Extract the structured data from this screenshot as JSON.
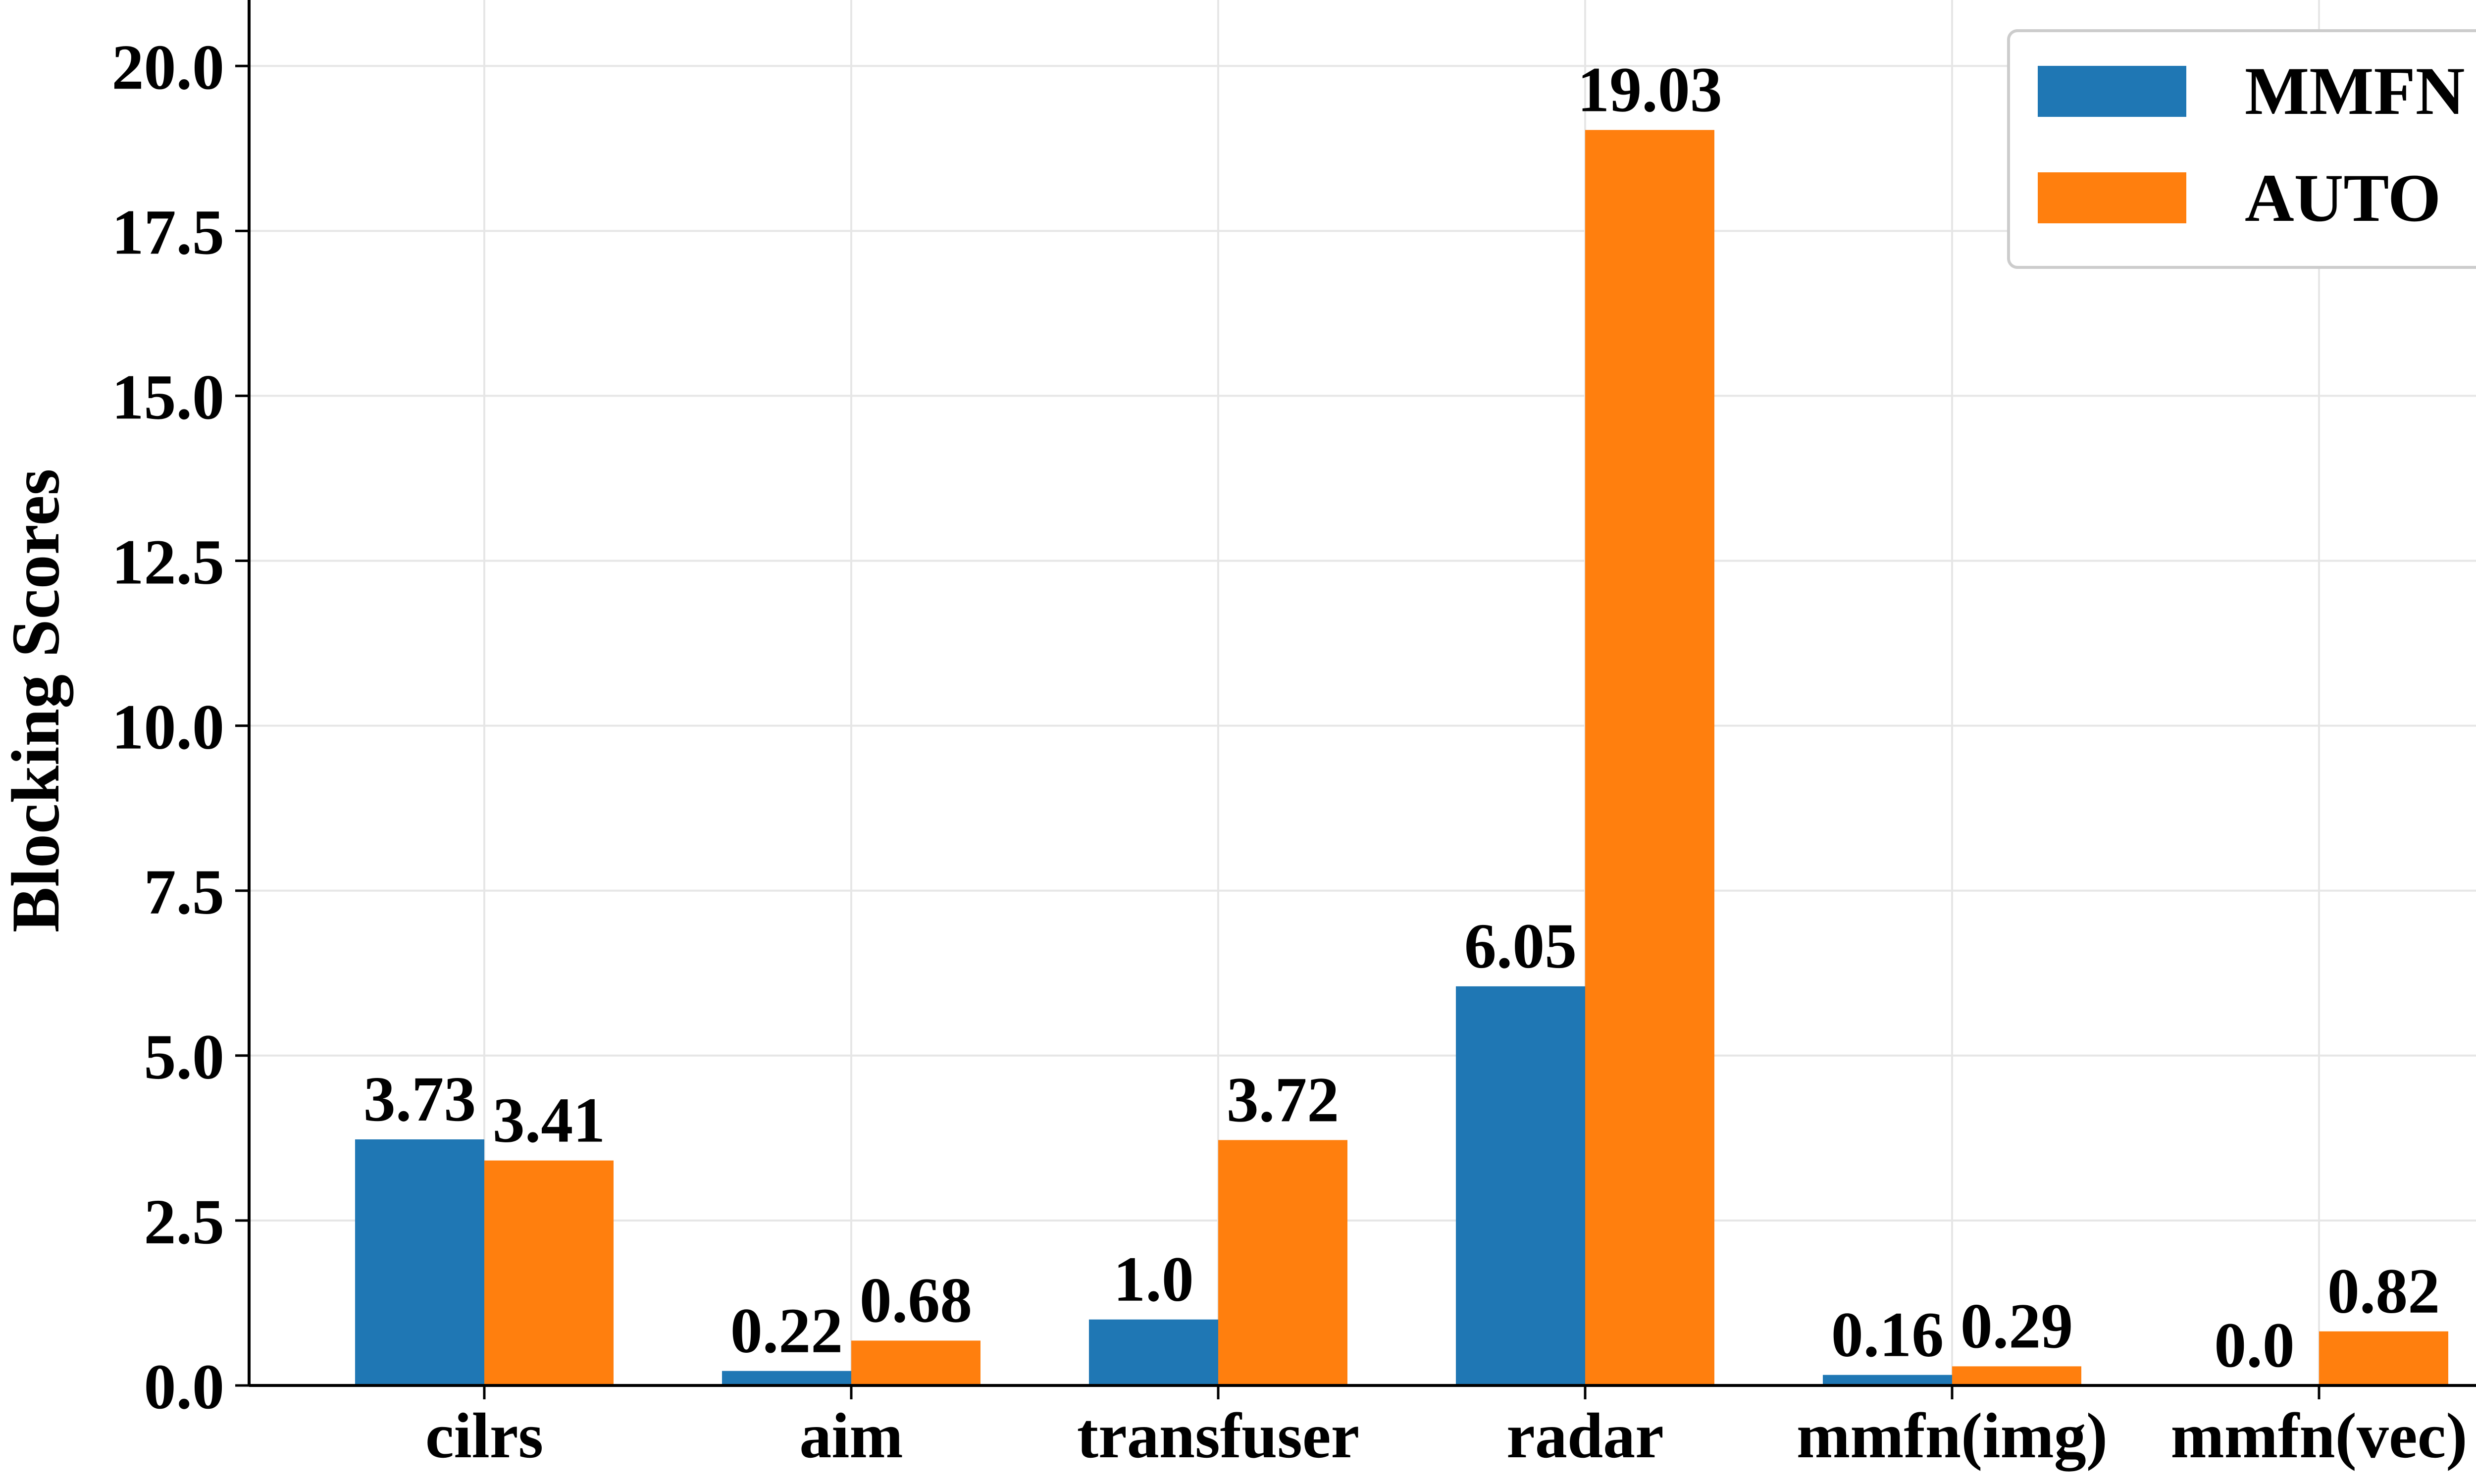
{
  "chart_data": {
    "type": "bar",
    "title": "",
    "xlabel": "",
    "ylabel": "Blocking Scores",
    "ylim": [
      0,
      21
    ],
    "yticks": [
      "0.0",
      "2.5",
      "5.0",
      "7.5",
      "10.0",
      "12.5",
      "15.0",
      "17.5",
      "20.0"
    ],
    "grid": true,
    "legend_position": "top-right",
    "categories": [
      "cilrs",
      "aim",
      "transfuser",
      "radar",
      "mmfn(img)",
      "mmfn(vec)"
    ],
    "series": [
      {
        "name": "MMFN",
        "color": "#1f77b4",
        "values": [
          3.73,
          0.22,
          1.0,
          6.05,
          0.16,
          0.0
        ],
        "labels": [
          "3.73",
          "0.22",
          "1.0",
          "6.05",
          "0.16",
          "0.0"
        ]
      },
      {
        "name": "AUTO",
        "color": "#ff7f0e",
        "values": [
          3.41,
          0.68,
          3.72,
          19.03,
          0.29,
          0.82
        ],
        "labels": [
          "3.41",
          "0.68",
          "3.72",
          "19.03",
          "0.29",
          "0.82"
        ]
      }
    ]
  }
}
